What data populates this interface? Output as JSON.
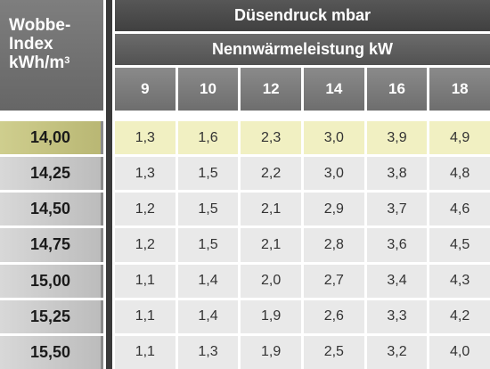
{
  "corner": {
    "line1": "Wobbe-",
    "line2": "Index",
    "line3": "kWh/m",
    "sup": "3"
  },
  "header": {
    "title": "Düsendruck mbar",
    "subtitle": "Nennwärmeleistung kW"
  },
  "columns": [
    "9",
    "10",
    "12",
    "14",
    "16",
    "18"
  ],
  "highlight_row": 0,
  "colors": {
    "highlight": "#f1f0c2",
    "header_dark": "#404040",
    "header_mid": "#6e6e6e"
  },
  "rows": [
    {
      "index": "14,00",
      "values": [
        "1,3",
        "1,6",
        "2,3",
        "3,0",
        "3,9",
        "4,9"
      ]
    },
    {
      "index": "14,25",
      "values": [
        "1,3",
        "1,5",
        "2,2",
        "3,0",
        "3,8",
        "4,8"
      ]
    },
    {
      "index": "14,50",
      "values": [
        "1,2",
        "1,5",
        "2,1",
        "2,9",
        "3,7",
        "4,6"
      ]
    },
    {
      "index": "14,75",
      "values": [
        "1,2",
        "1,5",
        "2,1",
        "2,8",
        "3,6",
        "4,5"
      ]
    },
    {
      "index": "15,00",
      "values": [
        "1,1",
        "1,4",
        "2,0",
        "2,7",
        "3,4",
        "4,3"
      ]
    },
    {
      "index": "15,25",
      "values": [
        "1,1",
        "1,4",
        "1,9",
        "2,6",
        "3,3",
        "4,2"
      ]
    },
    {
      "index": "15,50",
      "values": [
        "1,1",
        "1,3",
        "1,9",
        "2,5",
        "3,2",
        "4,0"
      ]
    }
  ]
}
